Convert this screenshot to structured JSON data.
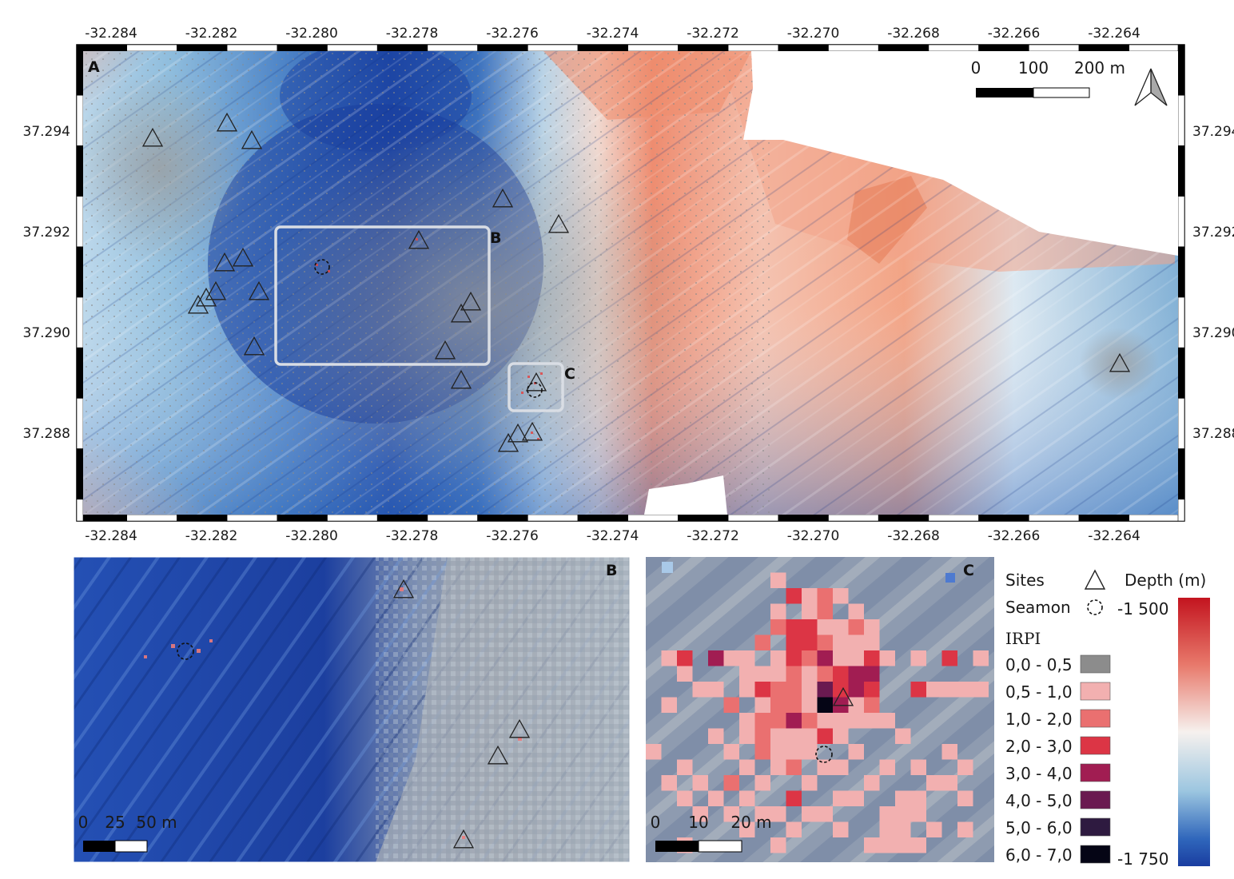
{
  "panel_a": {
    "letter": "A",
    "lon_ticks": [
      "-32.284",
      "-32.282",
      "-32.280",
      "-32.278",
      "-32.276",
      "-32.274",
      "-32.272",
      "-32.270",
      "-32.268",
      "-32.266",
      "-32.264"
    ],
    "lat_ticks_left": [
      "37.294",
      "37.292",
      "37.290",
      "37.288"
    ],
    "lat_ticks_right": [
      "37.294",
      "37.292",
      "37.290",
      "37.288"
    ],
    "scale_labels": [
      "0",
      "100",
      "200 m"
    ],
    "box_b_label": "B",
    "box_c_label": "C",
    "north_arrow_icon": "north-arrow-icon"
  },
  "panel_b": {
    "letter": "B",
    "scale_labels": [
      "0",
      "25",
      "50 m"
    ]
  },
  "panel_c": {
    "letter": "C",
    "scale_labels": [
      "0",
      "10",
      "20 m"
    ]
  },
  "legend": {
    "sites_label": "Sites",
    "seamon_label": "Seamon",
    "irpi_label": "IRPI",
    "depth_label": "Depth (m)",
    "depth_max_label": "-1 500",
    "depth_min_label": "-1 750",
    "depth_colors": [
      "#c3141f",
      "#e8796b",
      "#f6f1ee",
      "#9cc6e0",
      "#2f66bb",
      "#1a3da0"
    ],
    "irpi_classes": [
      {
        "label": "0,0 - 0,5",
        "color": "#8c8c8c"
      },
      {
        "label": "0,5 - 1,0",
        "color": "#f2b0b0"
      },
      {
        "label": "1,0 - 2,0",
        "color": "#ea7070"
      },
      {
        "label": "2,0 - 3,0",
        "color": "#dc3545"
      },
      {
        "label": "3,0 - 4,0",
        "color": "#a11d52"
      },
      {
        "label": "4,0 - 5,0",
        "color": "#6a1a50"
      },
      {
        "label": "5,0 - 6,0",
        "color": "#2e1a40"
      },
      {
        "label": "6,0 - 7,0",
        "color": "#050515"
      }
    ]
  }
}
